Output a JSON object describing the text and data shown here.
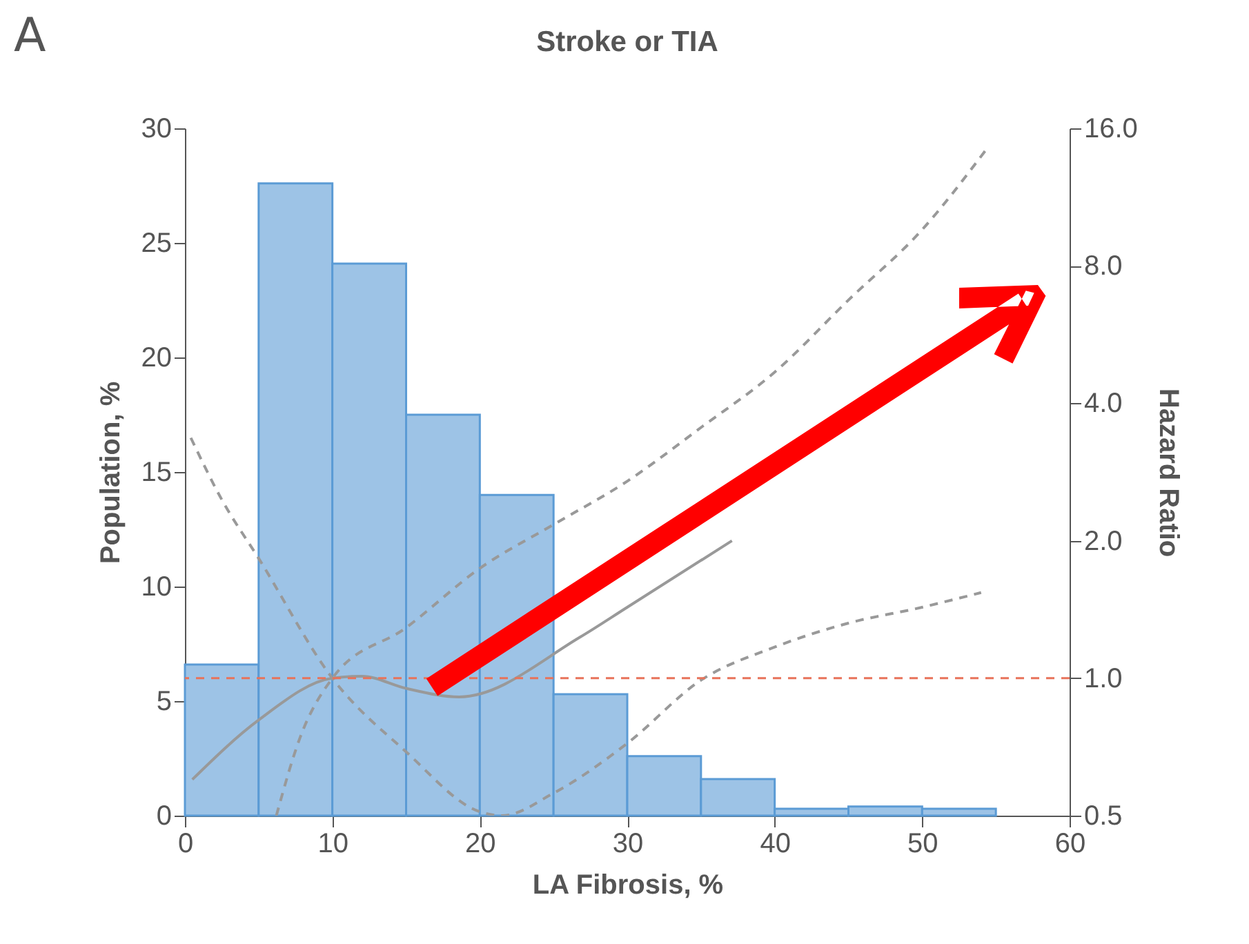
{
  "chart_data": {
    "type": "histogram",
    "title": "Stroke or TIA",
    "xlabel": "LA Fibrosis, %",
    "ylabel": "Population, %",
    "y2label": "Hazard Ratio",
    "annotations": [
      "A"
    ],
    "bins": [
      0,
      5,
      10,
      15,
      20,
      25,
      30,
      35,
      40,
      45,
      50,
      55
    ],
    "values": [
      6.6,
      27.6,
      24.1,
      17.5,
      14.0,
      5.3,
      2.6,
      1.6,
      0.3,
      0.4,
      0.3
    ],
    "color": "#9dc3e6",
    "series": [
      {
        "type": "line",
        "axis": "y2",
        "color": "#999999",
        "line_style": "solid",
        "x": [
          0.5,
          5,
          10,
          12,
          15,
          18.6,
          26.8,
          30,
          37.1
        ],
        "values": [
          0.6,
          0.81,
          1.0,
          1.01,
          0.95,
          0.91,
          1.23,
          1.43,
          2.0
        ]
      },
      {
        "type": "line",
        "axis": "y2",
        "color": "#999999",
        "line_style": "dashed",
        "x": [
          0.4,
          2.5,
          5,
          10,
          15,
          20,
          21.5,
          25,
          30,
          35,
          40,
          45,
          50,
          54
        ],
        "values": [
          3.36,
          2.46,
          1.83,
          1.0,
          0.69,
          0.51,
          0.5,
          0.56,
          0.72,
          0.99,
          1.17,
          1.32,
          1.43,
          1.54
        ]
      },
      {
        "type": "line",
        "axis": "y2",
        "color": "#999999",
        "line_style": "dashed",
        "x": [
          6.2,
          7.8,
          10,
          15,
          20,
          25,
          30,
          35,
          40,
          45,
          50,
          54.5
        ],
        "values": [
          0.5,
          0.74,
          1.0,
          1.29,
          1.74,
          2.17,
          2.7,
          3.54,
          4.68,
          6.73,
          9.6,
          14.6
        ]
      }
    ],
    "ref_lines": [
      {
        "axis": "y2",
        "value": 1.0,
        "color": "#e8735a",
        "line_style": "dashed"
      }
    ],
    "xlim": [
      0,
      60
    ],
    "xticks": [
      0,
      10,
      20,
      30,
      40,
      50,
      60
    ],
    "ylim": [
      0,
      30
    ],
    "yticks": [
      0,
      5,
      10,
      15,
      20,
      25,
      30
    ],
    "log": "y2",
    "y2lim": [
      0.5,
      16
    ],
    "y2ticks": [
      0.5,
      {
        "value": 1,
        "label": "1.0"
      },
      {
        "value": 2,
        "label": "2.0"
      },
      {
        "value": 4,
        "label": "4.0"
      },
      {
        "value": 8,
        "label": "8.0"
      },
      {
        "value": 16,
        "label": "16.0"
      }
    ]
  }
}
